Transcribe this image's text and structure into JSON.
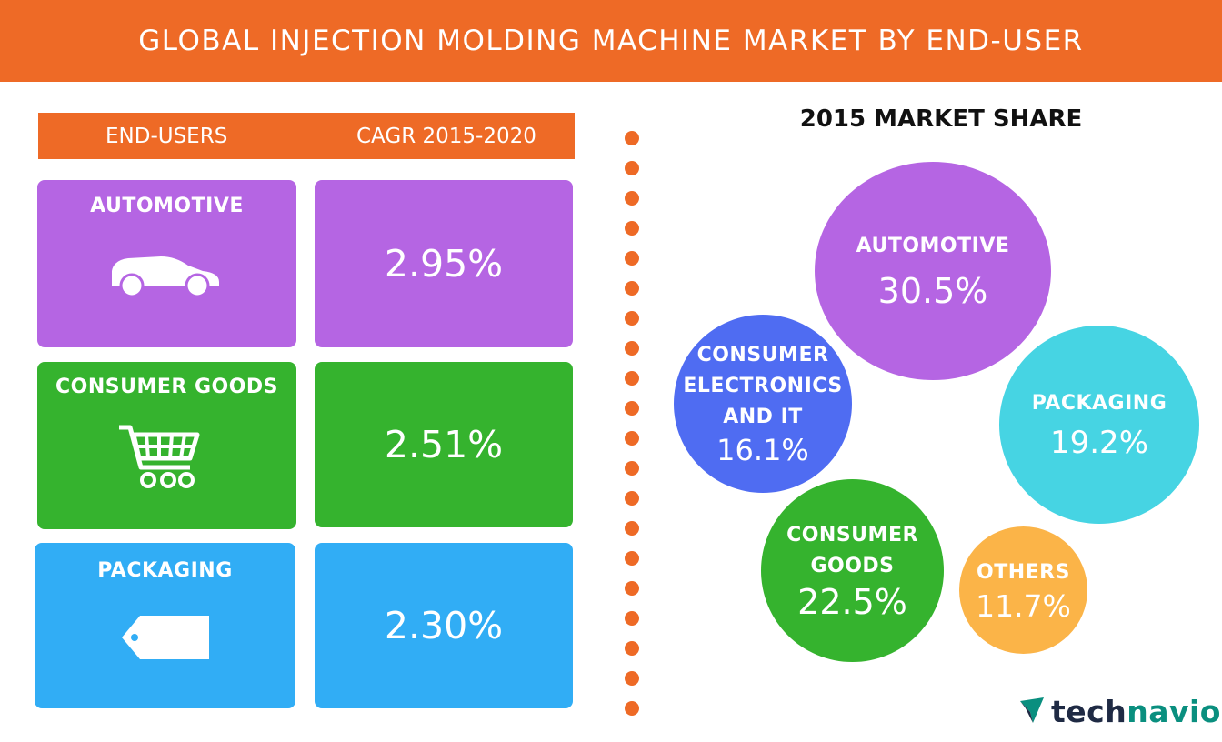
{
  "title": "GLOBAL INJECTION MOLDING MACHINE MARKET BY END-USER",
  "table": {
    "col1": "END-USERS",
    "col2": "CAGR 2015-2020",
    "rows": [
      {
        "label": "AUTOMOTIVE",
        "cagr": "2.95%",
        "icon": "car-icon",
        "color": "#b565e3"
      },
      {
        "label": "CONSUMER GOODS",
        "cagr": "2.51%",
        "icon": "shopping-cart-icon",
        "color": "#35b32e"
      },
      {
        "label": "PACKAGING",
        "cagr": "2.30%",
        "icon": "tag-icon",
        "color": "#31adf5"
      }
    ]
  },
  "share_title": "2015 MARKET SHARE",
  "bubbles": [
    {
      "label": "AUTOMOTIVE",
      "value": "30.5%",
      "color": "#b565e3"
    },
    {
      "label": "CONSUMER\nELECTRONICS\nAND IT",
      "value": "16.1%",
      "color": "#4f6cf2"
    },
    {
      "label": "PACKAGING",
      "value": "19.2%",
      "color": "#46d4e3"
    },
    {
      "label": "CONSUMER\nGOODS",
      "value": "22.5%",
      "color": "#35b32e"
    },
    {
      "label": "OTHERS",
      "value": "11.7%",
      "color": "#fbb448"
    }
  ],
  "chart_data": [
    {
      "type": "table",
      "columns": [
        "END-USERS",
        "CAGR 2015-2020"
      ],
      "rows": [
        [
          "AUTOMOTIVE",
          2.95
        ],
        [
          "CONSUMER GOODS",
          2.51
        ],
        [
          "PACKAGING",
          2.3
        ]
      ]
    },
    {
      "type": "pie",
      "title": "2015 MARKET SHARE",
      "categories": [
        "AUTOMOTIVE",
        "CONSUMER ELECTRONICS AND IT",
        "PACKAGING",
        "CONSUMER GOODS",
        "OTHERS"
      ],
      "values": [
        30.5,
        16.1,
        19.2,
        22.5,
        11.7
      ]
    }
  ],
  "logo": {
    "part1": "tech",
    "part2": "navio"
  },
  "colors": {
    "accent": "#ee6a26",
    "dot": "#ee6a26"
  }
}
